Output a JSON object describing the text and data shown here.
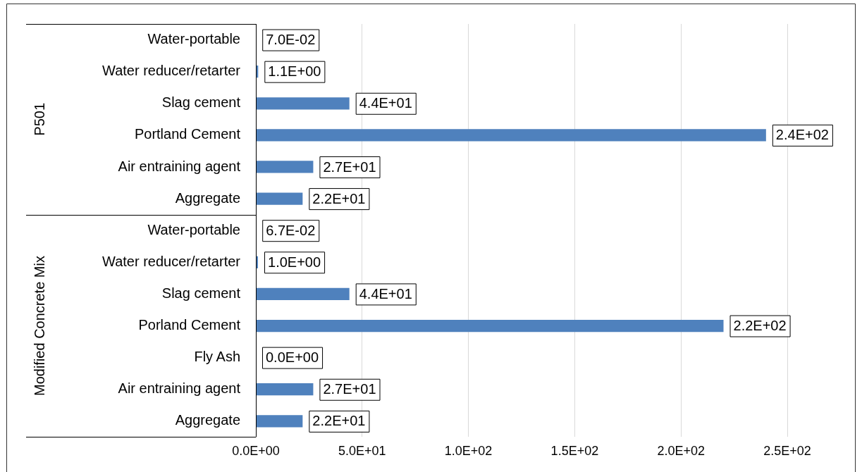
{
  "chart_data": {
    "type": "bar",
    "orientation": "horizontal",
    "categories": [
      "Water-portable",
      "Water reducer/retarter",
      "Slag cement",
      "Portland Cement",
      "Air entraining agent",
      "Aggregate",
      "Water-portable",
      "Water reducer/retarter",
      "Slag cement",
      "Porland Cement",
      "Fly Ash",
      "Air entraining agent",
      "Aggregate"
    ],
    "values": [
      0.07,
      1.1,
      44,
      240,
      27,
      22,
      0.067,
      1.0,
      44,
      220,
      0,
      27,
      22
    ],
    "value_labels": [
      "7.0E-02",
      "1.1E+00",
      "4.4E+01",
      "2.4E+02",
      "2.7E+01",
      "2.2E+01",
      "6.7E-02",
      "1.0E+00",
      "4.4E+01",
      "2.2E+02",
      "0.0E+00",
      "2.7E+01",
      "2.2E+01"
    ],
    "color": "#4f81bd",
    "xlim": [
      0,
      250
    ],
    "xticks": [
      {
        "value": 0,
        "label": "0.0E+00"
      },
      {
        "value": 50,
        "label": "5.0E+01"
      },
      {
        "value": 100,
        "label": "1.0E+02"
      },
      {
        "value": 150,
        "label": "1.5E+02"
      },
      {
        "value": 200,
        "label": "2.0E+02"
      },
      {
        "value": 250,
        "label": "2.5E+02"
      }
    ],
    "annotations": [
      "P501",
      "Modified Concrete Mix"
    ],
    "grid": "x",
    "legend": false
  }
}
